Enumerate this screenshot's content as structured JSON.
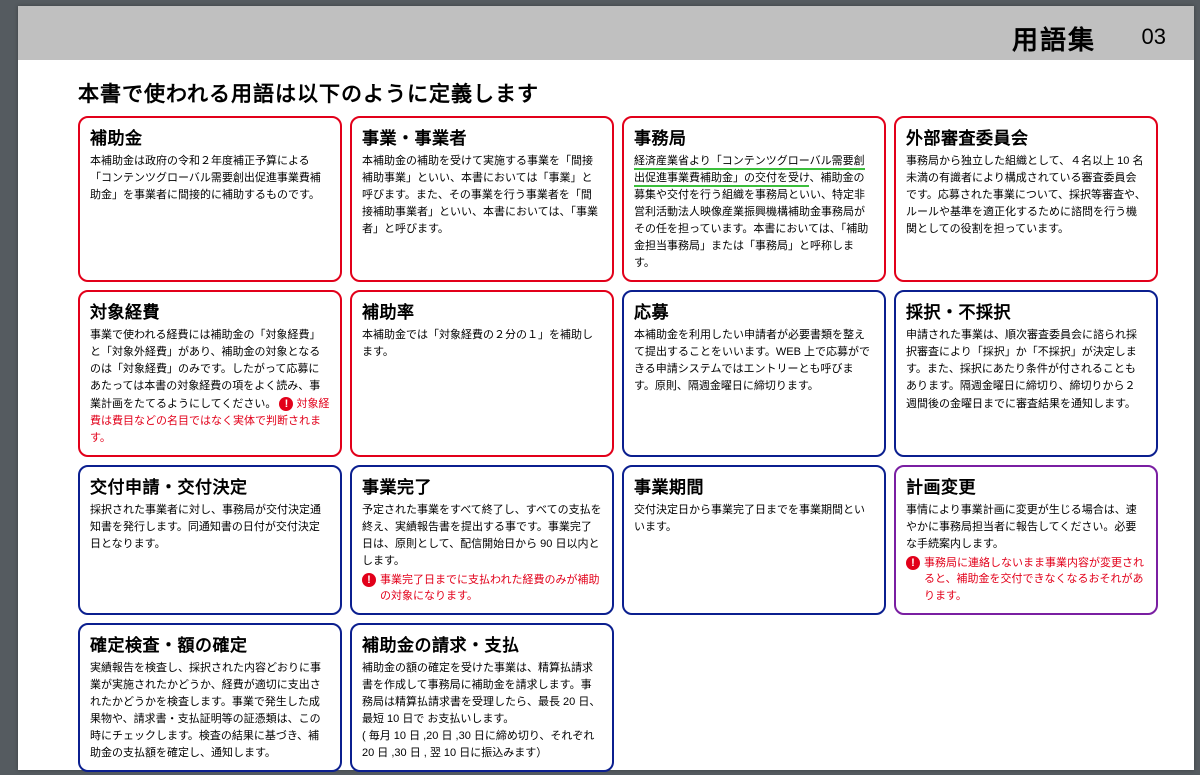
{
  "header": {
    "title": "用語集",
    "page": "03"
  },
  "subtitle": "本書で使われる用語は以下のように定義します",
  "colors": {
    "red": "#e2001a",
    "blue": "#0b1f8f",
    "purple": "#7a1fa2",
    "topbar": "#c0c0c0",
    "green_underline": "#3cbf3c"
  },
  "cards": {
    "r1c1": {
      "title": "補助金",
      "body": "本補助金は政府の令和２年度補正予算による「コンテンツグローバル需要創出促進事業費補助金」を事業者に間接的に補助するものです。"
    },
    "r1c2": {
      "title": "事業・事業者",
      "body": "本補助金の補助を受けて実施する事業を「間接補助事業」といい、本書においては「事業」と呼びます。また、その事業を行う事業者を「間接補助事業者」といい、本書においては、「事業者」と呼びます。"
    },
    "r1c3": {
      "title": "事務局",
      "underlined": "経済産業省より「コンテンツグローバル需要創出促進事業費補助金」の交付を受け",
      "rest": "、補助金の募集や交付を行う組織を事務局といい、特定非営利活動法人映像産業振興機構補助金事務局がその任を担っています。本書においては、「補助金担当事務局」または「事務局」と呼称します。"
    },
    "r1c4": {
      "title": "外部審査委員会",
      "body": "事務局から独立した組織として、４名以上 10 名未満の有識者により構成されている審査委員会です。応募された事業について、採択等審査や、ルールや基準を適正化するために諮問を行う機関としての役割を担っています。"
    },
    "r2c1": {
      "title": "対象経費",
      "body": "事業で使われる経費には補助金の「対象経費」と「対象外経費」があり、補助金の対象となるのは「対象経費」のみです。したがって応募にあたっては本書の対象経費の項をよく読み、事業計画をたてるようにしてください。",
      "warn": "対象経費は費目などの名目ではなく実体で判断されます。"
    },
    "r2c2": {
      "title": "補助率",
      "body": "本補助金では「対象経費の２分の１」を補助します。"
    },
    "r2c3": {
      "title": "応募",
      "body": "本補助金を利用したい申請者が必要書類を整えて提出することをいいます。WEB 上で応募ができる申請システムではエントリーとも呼びます。原則、隔週金曜日に締切ります。"
    },
    "r2c4": {
      "title": "採択・不採択",
      "body": "申請された事業は、順次審査委員会に諮られ採択審査により「採択」か「不採択」が決定します。また、採択にあたり条件が付されることもあります。隔週金曜日に締切り、締切りから２週間後の金曜日までに審査結果を通知します。"
    },
    "r3c1": {
      "title": "交付申請・交付決定",
      "body": "採択された事業者に対し、事務局が交付決定通知書を発行します。同通知書の日付が交付決定日となります。"
    },
    "r3c2": {
      "title": "事業完了",
      "body": "予定された事業をすべて終了し、すべての支払を終え、実績報告書を提出する事です。事業完了日は、原則として、配信開始日から 90 日以内とします。",
      "warn": "事業完了日までに支払われた経費のみが補助の対象になります。"
    },
    "r3c3": {
      "title": "事業期間",
      "body": "交付決定日から事業完了日までを事業期間といいます。"
    },
    "r3c4": {
      "title": "計画変更",
      "body": "事情により事業計画に変更が生じる場合は、速やかに事務局担当者に報告してください。必要な手続案内します。",
      "warn": "事務局に連絡しないまま事業内容が変更されると、補助金を交付できなくなるおそれがあります。"
    },
    "r4c1": {
      "title": "確定検査・額の確定",
      "body": "実績報告を検査し、採択された内容どおりに事業が実施されたかどうか、経費が適切に支出されたかどうかを検査します。事業で発生した成果物や、請求書・支払証明等の証憑類は、この時にチェックします。検査の結果に基づき、補助金の支払額を確定し、通知します。"
    },
    "r4c2": {
      "title": "補助金の請求・支払",
      "body": "補助金の額の確定を受けた事業は、精算払請求書を作成して事務局に補助金を請求します。事務局は精算払請求書を受理したら、最長 20 日、最短 10 日で お支払いします。\n( 毎月 10 日 ,20 日 ,30 日に締め切り、それぞれ 20 日 ,30 日 , 翌 10 日に振込みます）"
    }
  }
}
